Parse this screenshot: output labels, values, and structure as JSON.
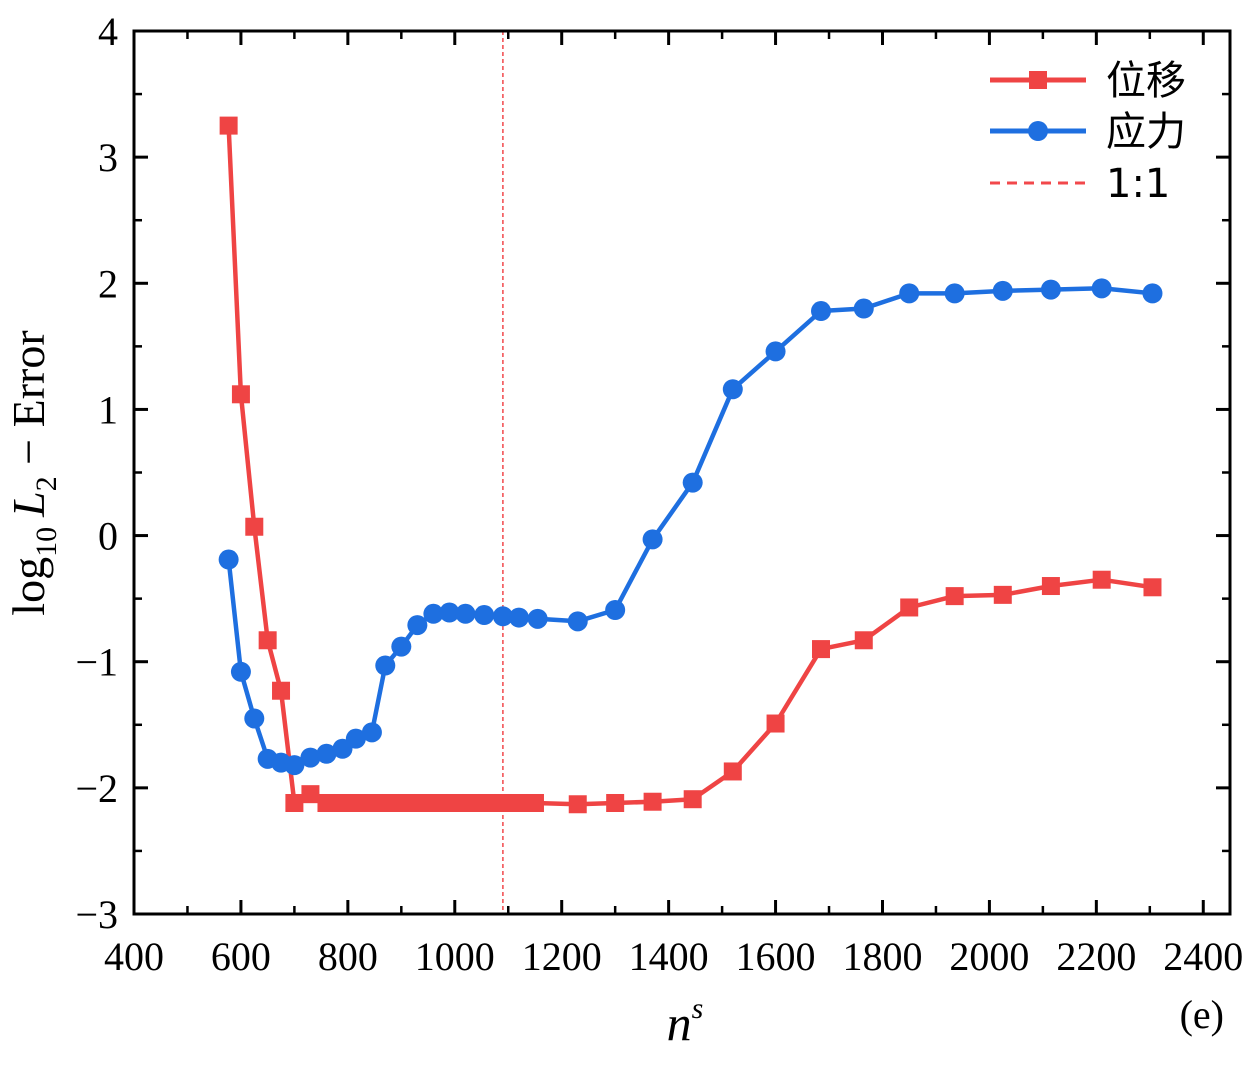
{
  "chart_data": {
    "type": "line",
    "panel_label": "(e)",
    "xlabel": "n",
    "xlabel_superscript": "s",
    "ylabel": {
      "prefix": "log",
      "prefix_sub": "10",
      "var": "L",
      "var_sub": "2",
      "suffix": " − Error"
    },
    "xlim": [
      400,
      2450
    ],
    "ylim": [
      -3,
      4
    ],
    "x_ticks": [
      400,
      600,
      800,
      1000,
      1200,
      1400,
      1600,
      1800,
      2000,
      2200,
      2400
    ],
    "x_tick_labels": [
      "400",
      "600",
      "800",
      "1000",
      "1200",
      "1400",
      "1600",
      "1800",
      "2000",
      "2200",
      "2400"
    ],
    "y_ticks": [
      -3,
      -2,
      -1,
      0,
      1,
      2,
      3,
      4
    ],
    "y_tick_labels": [
      "−3",
      "−2",
      "−1",
      "0",
      "1",
      "2",
      "3",
      "4"
    ],
    "vline": {
      "x": 1090,
      "color": "#F2484B",
      "name": "1:1"
    },
    "legend_position": "top-right",
    "series": [
      {
        "name": "位移",
        "color": "#EF4444",
        "marker": "square",
        "x": [
          577,
          600,
          625,
          650,
          675,
          700,
          730,
          760,
          790,
          820,
          850,
          880,
          910,
          940,
          970,
          1000,
          1030,
          1060,
          1090,
          1120,
          1150,
          1230,
          1300,
          1370,
          1445,
          1520,
          1600,
          1685,
          1765,
          1850,
          1935,
          2025,
          2115,
          2210,
          2305
        ],
        "y": [
          3.25,
          1.12,
          0.07,
          -0.83,
          -1.23,
          -2.12,
          -2.05,
          -2.12,
          -2.12,
          -2.12,
          -2.12,
          -2.12,
          -2.12,
          -2.12,
          -2.12,
          -2.12,
          -2.12,
          -2.12,
          -2.12,
          -2.12,
          -2.12,
          -2.13,
          -2.12,
          -2.11,
          -2.09,
          -1.87,
          -1.49,
          -0.9,
          -0.83,
          -0.57,
          -0.48,
          -0.47,
          -0.4,
          -0.35,
          -0.41
        ]
      },
      {
        "name": "应力",
        "color": "#1E6FE0",
        "marker": "circle",
        "x": [
          577,
          600,
          625,
          650,
          675,
          700,
          730,
          760,
          790,
          815,
          845,
          870,
          900,
          930,
          960,
          990,
          1020,
          1055,
          1090,
          1120,
          1155,
          1230,
          1300,
          1370,
          1445,
          1520,
          1600,
          1685,
          1765,
          1850,
          1935,
          2025,
          2115,
          2210,
          2305
        ],
        "y": [
          -0.19,
          -1.08,
          -1.45,
          -1.77,
          -1.8,
          -1.82,
          -1.76,
          -1.73,
          -1.69,
          -1.61,
          -1.56,
          -1.03,
          -0.88,
          -0.71,
          -0.62,
          -0.61,
          -0.62,
          -0.63,
          -0.64,
          -0.65,
          -0.66,
          -0.68,
          -0.59,
          -0.03,
          0.42,
          1.16,
          1.46,
          1.78,
          1.8,
          1.92,
          1.92,
          1.94,
          1.95,
          1.96,
          1.92
        ]
      }
    ]
  }
}
